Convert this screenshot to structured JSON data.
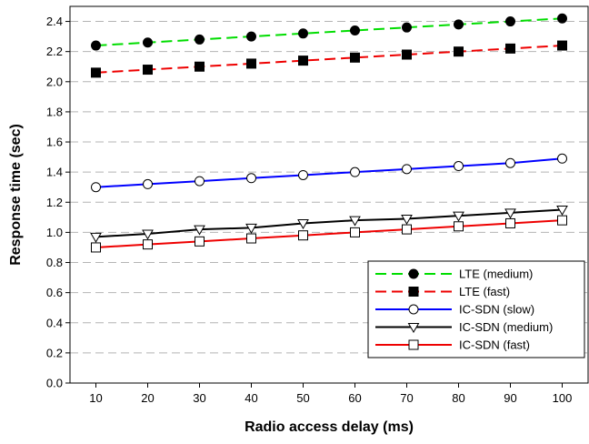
{
  "chart_data": {
    "type": "line",
    "xlabel": "Radio access delay (ms)",
    "ylabel": "Response time (sec)",
    "x": [
      10,
      20,
      30,
      40,
      50,
      60,
      70,
      80,
      90,
      100
    ],
    "xlim": [
      5,
      105
    ],
    "ylim": [
      0.0,
      2.5
    ],
    "xticks": [
      "10",
      "20",
      "30",
      "40",
      "50",
      "60",
      "70",
      "80",
      "90",
      "100"
    ],
    "yticks": [
      "0.0",
      "0.2",
      "0.4",
      "0.6",
      "0.8",
      "1.0",
      "1.2",
      "1.4",
      "1.6",
      "1.8",
      "2.0",
      "2.2",
      "2.4"
    ],
    "grid": "horizontal dashed",
    "legend_position": "bottom-right",
    "series": [
      {
        "name": "LTE (medium)",
        "color": "#00dd00",
        "dash": "dashed",
        "marker": "filled-circle",
        "values": [
          2.24,
          2.26,
          2.28,
          2.3,
          2.32,
          2.34,
          2.36,
          2.38,
          2.4,
          2.42
        ]
      },
      {
        "name": "LTE (fast)",
        "color": "#ee0000",
        "dash": "dashed",
        "marker": "filled-square",
        "values": [
          2.06,
          2.08,
          2.1,
          2.12,
          2.14,
          2.16,
          2.18,
          2.2,
          2.22,
          2.24
        ]
      },
      {
        "name": "IC-SDN (slow)",
        "color": "#0000ff",
        "dash": "solid",
        "marker": "open-circle",
        "values": [
          1.3,
          1.32,
          1.34,
          1.36,
          1.38,
          1.4,
          1.42,
          1.44,
          1.46,
          1.49
        ]
      },
      {
        "name": "IC-SDN (medium)",
        "color": "#000000",
        "dash": "solid",
        "marker": "open-triangle-down",
        "values": [
          0.97,
          0.99,
          1.02,
          1.03,
          1.06,
          1.08,
          1.09,
          1.11,
          1.13,
          1.15
        ]
      },
      {
        "name": "IC-SDN (fast)",
        "color": "#ee0000",
        "dash": "solid",
        "marker": "open-square",
        "values": [
          0.9,
          0.92,
          0.94,
          0.96,
          0.98,
          1.0,
          1.02,
          1.04,
          1.06,
          1.08
        ]
      }
    ]
  }
}
